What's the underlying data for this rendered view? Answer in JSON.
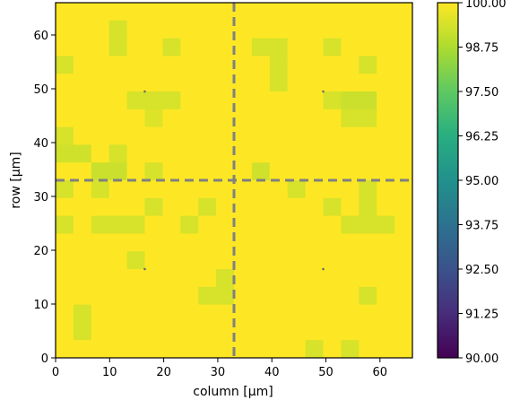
{
  "chart_data": {
    "type": "heatmap",
    "title": "",
    "xlabel": "column [µm]",
    "ylabel": "row [µm]",
    "xlim": [
      0,
      66
    ],
    "ylim": [
      0,
      66
    ],
    "x_ticks": [
      "0",
      "10",
      "20",
      "30",
      "40",
      "50",
      "60"
    ],
    "y_ticks": [
      "0",
      "10",
      "20",
      "30",
      "40",
      "50",
      "60"
    ],
    "cell_size": 3.3,
    "grid": false,
    "colormap": "viridis",
    "clim": [
      90,
      100
    ],
    "colorbar_ticks": [
      "90.00",
      "91.25",
      "92.50",
      "93.75",
      "95.00",
      "96.25",
      "97.50",
      "98.75",
      "100.00"
    ],
    "dashed_lines": {
      "x": 33,
      "y": 33,
      "color": "#808080"
    },
    "marks": [
      [
        16.5,
        49.5
      ],
      [
        49.5,
        49.5
      ],
      [
        16.5,
        16.5
      ],
      [
        49.5,
        16.5
      ]
    ],
    "values_note_default": 100,
    "values": [
      [
        100,
        100,
        100,
        100,
        100,
        100,
        100,
        100,
        100,
        100,
        100,
        100,
        100,
        100,
        100,
        100,
        100,
        100,
        100,
        100
      ],
      [
        100,
        100,
        100,
        99.4,
        100,
        100,
        100,
        100,
        100,
        100,
        100,
        100,
        100,
        100,
        100,
        100,
        100,
        100,
        100,
        100
      ],
      [
        100,
        100,
        100,
        99.4,
        100,
        100,
        99.4,
        100,
        100,
        100,
        100,
        99.4,
        99.4,
        100,
        100,
        99.4,
        100,
        100,
        100,
        100
      ],
      [
        99.4,
        100,
        100,
        100,
        100,
        100,
        100,
        100,
        100,
        100,
        100,
        100,
        99.4,
        100,
        100,
        100,
        100,
        99.4,
        100,
        100
      ],
      [
        100,
        100,
        100,
        100,
        100,
        100,
        100,
        100,
        100,
        100,
        100,
        100,
        99.4,
        100,
        100,
        100,
        100,
        100,
        100,
        100
      ],
      [
        100,
        100,
        100,
        100,
        99.4,
        99.4,
        99.4,
        100,
        100,
        100,
        100,
        100,
        100,
        100,
        100,
        99.4,
        99.2,
        99.2,
        100,
        100
      ],
      [
        100,
        100,
        100,
        100,
        100,
        99.5,
        100,
        100,
        100,
        100,
        100,
        100,
        100,
        100,
        100,
        100,
        99.4,
        99.4,
        100,
        100
      ],
      [
        99.4,
        100,
        100,
        100,
        100,
        100,
        100,
        100,
        100,
        100,
        100,
        100,
        100,
        100,
        100,
        100,
        100,
        100,
        100,
        100
      ],
      [
        99.3,
        99.3,
        100,
        99.4,
        100,
        100,
        100,
        100,
        100,
        100,
        100,
        100,
        100,
        100,
        100,
        100,
        100,
        100,
        100,
        100
      ],
      [
        100,
        100,
        99.2,
        99.2,
        100,
        99.4,
        100,
        100,
        100,
        100,
        100,
        99.3,
        100,
        100,
        100,
        100,
        100,
        100,
        100,
        100
      ],
      [
        99.4,
        100,
        99.4,
        100,
        100,
        100,
        100,
        100,
        100,
        100,
        100,
        100,
        100,
        99.4,
        100,
        100,
        100,
        99.4,
        100,
        100
      ],
      [
        100,
        100,
        100,
        100,
        100,
        99.4,
        100,
        100,
        99.4,
        100,
        100,
        100,
        100,
        100,
        100,
        99.4,
        100,
        99.4,
        100,
        100
      ],
      [
        99.4,
        100,
        99.4,
        99.4,
        99.4,
        100,
        100,
        99.4,
        100,
        100,
        100,
        100,
        100,
        100,
        100,
        100,
        99.4,
        99.4,
        99.4,
        100
      ],
      [
        100,
        100,
        100,
        100,
        100,
        100,
        100,
        100,
        100,
        100,
        100,
        100,
        100,
        100,
        100,
        100,
        100,
        100,
        100,
        100
      ],
      [
        100,
        100,
        100,
        100,
        99.4,
        100,
        100,
        100,
        100,
        100,
        100,
        100,
        100,
        100,
        100,
        100,
        100,
        100,
        100,
        100
      ],
      [
        100,
        100,
        100,
        100,
        100,
        100,
        100,
        100,
        100,
        99.4,
        100,
        100,
        100,
        100,
        100,
        100,
        100,
        100,
        100,
        100
      ],
      [
        100,
        100,
        100,
        100,
        100,
        100,
        100,
        100,
        99.4,
        99.4,
        100,
        100,
        100,
        100,
        100,
        100,
        100,
        99.4,
        100,
        100
      ],
      [
        100,
        99.4,
        100,
        100,
        100,
        100,
        100,
        100,
        100,
        100,
        100,
        100,
        100,
        100,
        100,
        100,
        100,
        100,
        100,
        100
      ],
      [
        100,
        99.4,
        100,
        100,
        100,
        100,
        100,
        100,
        100,
        100,
        100,
        100,
        100,
        100,
        100,
        100,
        100,
        100,
        100,
        100
      ],
      [
        100,
        100,
        100,
        100,
        100,
        100,
        100,
        100,
        100,
        100,
        100,
        100,
        100,
        100,
        99.4,
        100,
        99.4,
        100,
        100,
        100
      ]
    ]
  }
}
